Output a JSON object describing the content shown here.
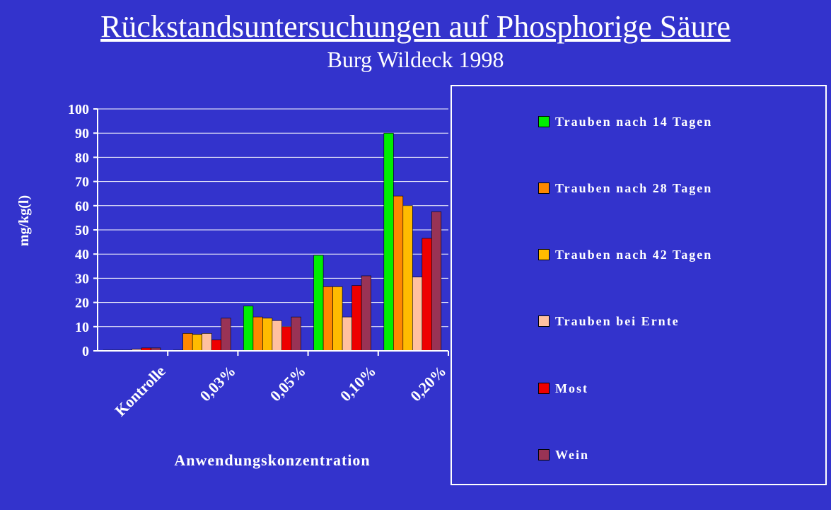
{
  "chart_data": {
    "type": "bar",
    "title": "Rückstandsuntersuchungen auf Phosphorige Säure",
    "subtitle": "Burg Wildeck 1998",
    "xlabel": "Anwendungskonzentration",
    "ylabel": "mg/kg(l)",
    "categories": [
      "Kontrolle",
      "0,03%",
      "0,05%",
      "0,10%",
      "0,20%"
    ],
    "ylim": [
      0,
      100
    ],
    "yticks": [
      "0",
      "10",
      "20",
      "30",
      "40",
      "50",
      "60",
      "70",
      "80",
      "90",
      "100"
    ],
    "grid": true,
    "legend_position": "right",
    "series": [
      {
        "name": "Trauben nach 14 Tagen",
        "color": "#00ee00",
        "values": [
          0.3,
          0.3,
          18.5,
          39.5,
          90
        ]
      },
      {
        "name": "Trauben nach 28 Tagen",
        "color": "#ff8800",
        "values": [
          0.3,
          7.2,
          14,
          26.5,
          64
        ]
      },
      {
        "name": "Trauben nach 42 Tagen",
        "color": "#ffbb00",
        "values": [
          0.3,
          6.8,
          13.5,
          26.5,
          60
        ]
      },
      {
        "name": "Trauben bei Ernte",
        "color": "#ffc0a0",
        "values": [
          0.7,
          7.2,
          12.5,
          14,
          30.5
        ]
      },
      {
        "name": "Most",
        "color": "#ee0000",
        "values": [
          1.2,
          4.5,
          10,
          27,
          46.5
        ]
      },
      {
        "name": "Wein",
        "color": "#993355",
        "values": [
          1.2,
          13.5,
          14,
          31,
          57.5
        ]
      }
    ]
  }
}
